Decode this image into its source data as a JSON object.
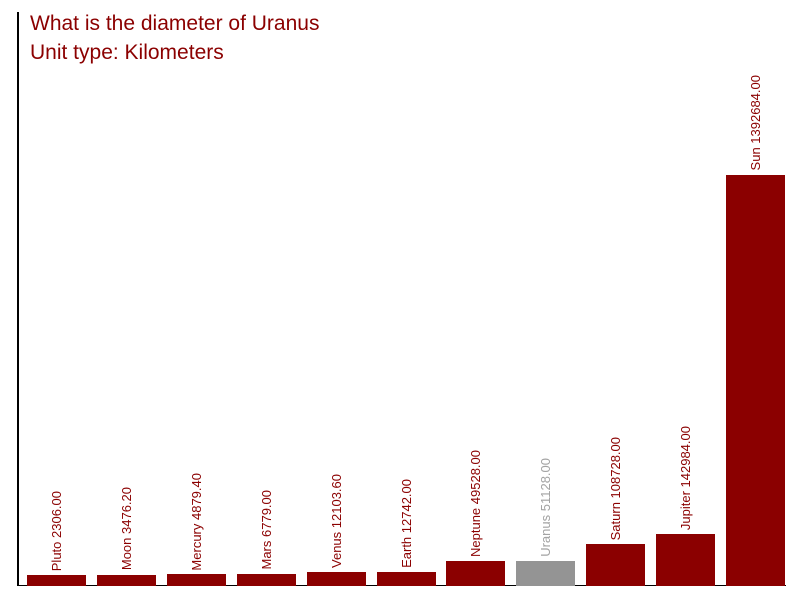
{
  "header": {
    "title": "What is the diameter of Uranus",
    "subtitle": "Unit type: Kilometers",
    "text_color": "#8b0000"
  },
  "chart_data": {
    "type": "bar",
    "title": "What is the diameter of Uranus",
    "subtitle": "Unit type: Kilometers",
    "unit": "Kilometers",
    "xlabel": "",
    "ylabel": "",
    "grid": false,
    "legend": false,
    "axis_color": "#000000",
    "background_color": "#ffffff",
    "default_bar_color": "#8b0000",
    "default_label_color": "#8b0000",
    "highlighted_category": "Uranus",
    "categories": [
      "Pluto",
      "Moon",
      "Mercury",
      "Mars",
      "Venus",
      "Earth",
      "Neptune",
      "Uranus",
      "Saturn",
      "Jupiter",
      "Sun"
    ],
    "values": [
      2306.0,
      3476.2,
      4879.4,
      6779.0,
      12103.6,
      12742.0,
      49528.0,
      51128.0,
      108728.0,
      142984.0,
      1392684.0
    ],
    "ylim": [
      0,
      1392684
    ],
    "bars": [
      {
        "category": "Pluto",
        "value": 2306.0,
        "label": "Pluto 2306.00",
        "bar_color": "#8b0000",
        "label_color": "#8b0000"
      },
      {
        "category": "Moon",
        "value": 3476.2,
        "label": "Moon 3476.20",
        "bar_color": "#8b0000",
        "label_color": "#8b0000"
      },
      {
        "category": "Mercury",
        "value": 4879.4,
        "label": "Mercury 4879.40",
        "bar_color": "#8b0000",
        "label_color": "#8b0000"
      },
      {
        "category": "Mars",
        "value": 6779.0,
        "label": "Mars 6779.00",
        "bar_color": "#8b0000",
        "label_color": "#8b0000"
      },
      {
        "category": "Venus",
        "value": 12103.6,
        "label": "Venus 12103.60",
        "bar_color": "#8b0000",
        "label_color": "#8b0000"
      },
      {
        "category": "Earth",
        "value": 12742.0,
        "label": "Earth 12742.00",
        "bar_color": "#8b0000",
        "label_color": "#8b0000"
      },
      {
        "category": "Neptune",
        "value": 49528.0,
        "label": "Neptune 49528.00",
        "bar_color": "#8b0000",
        "label_color": "#8b0000"
      },
      {
        "category": "Uranus",
        "value": 51128.0,
        "label": "Uranus 51128.00",
        "bar_color": "#949494",
        "label_color": "#a3a3a3"
      },
      {
        "category": "Saturn",
        "value": 108728.0,
        "label": "Saturn 108728.00",
        "bar_color": "#8b0000",
        "label_color": "#8b0000"
      },
      {
        "category": "Jupiter",
        "value": 142984.0,
        "label": "Jupiter 142984.00",
        "bar_color": "#8b0000",
        "label_color": "#8b0000"
      },
      {
        "category": "Sun",
        "value": 1392684.0,
        "label": "Sun 1392684.00",
        "bar_color": "#8b0000",
        "label_color": "#8b0000"
      }
    ]
  }
}
